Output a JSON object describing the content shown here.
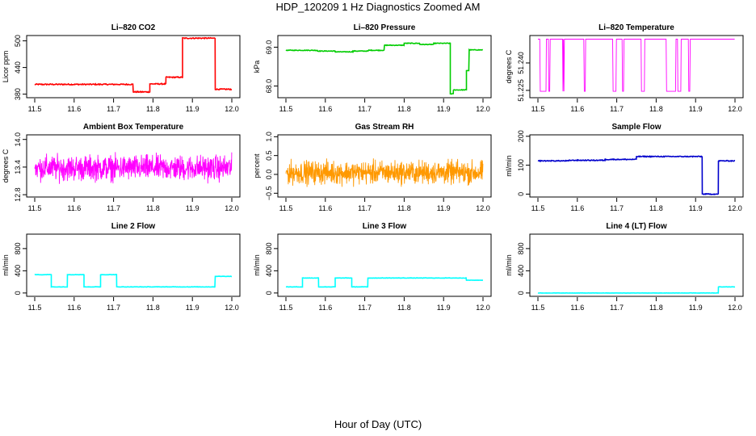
{
  "figure": {
    "title": "HDP_120209  1 Hz Diagnostics Zoomed AM",
    "xlabel": "Hour of Day (UTC)"
  },
  "chart_data": [
    {
      "type": "line",
      "title": "Li–820 CO2",
      "ylabel": "Licor ppm",
      "color": "#ff0000",
      "xlim": [
        11.5,
        12.0
      ],
      "xticks": [
        11.5,
        11.6,
        11.7,
        11.8,
        11.9,
        12.0
      ],
      "xtick_labels": [
        "11.5",
        "11.6",
        "11.7",
        "11.8",
        "11.9",
        "12.0"
      ],
      "ylim": [
        372,
        512
      ],
      "yticks": [
        380,
        440,
        500
      ],
      "ytick_labels": [
        "380",
        "440",
        "500"
      ],
      "segments": [
        [
          11.5,
          11.75,
          402
        ],
        [
          11.75,
          11.792,
          385
        ],
        [
          11.792,
          11.833,
          403
        ],
        [
          11.833,
          11.875,
          418
        ],
        [
          11.875,
          11.958,
          506
        ],
        [
          11.958,
          12.0,
          391
        ]
      ],
      "noise": 1.2
    },
    {
      "type": "line",
      "title": "Li–820 Pressure",
      "ylabel": "kPa",
      "color": "#00cc00",
      "xlim": [
        11.5,
        12.0
      ],
      "xticks": [
        11.5,
        11.6,
        11.7,
        11.8,
        11.9,
        12.0
      ],
      "xtick_labels": [
        "11.5",
        "11.6",
        "11.7",
        "11.8",
        "11.9",
        "12.0"
      ],
      "ylim": [
        67.7,
        69.3
      ],
      "yticks": [
        68.0,
        69.0
      ],
      "ytick_labels": [
        "68.0",
        "69.0"
      ],
      "segments": [
        [
          11.5,
          11.58,
          68.92
        ],
        [
          11.58,
          11.625,
          68.9
        ],
        [
          11.625,
          11.67,
          68.88
        ],
        [
          11.67,
          11.71,
          68.9
        ],
        [
          11.71,
          11.75,
          68.92
        ],
        [
          11.75,
          11.8,
          69.05
        ],
        [
          11.8,
          11.84,
          69.1
        ],
        [
          11.84,
          11.875,
          69.07
        ],
        [
          11.875,
          11.917,
          69.1
        ],
        [
          11.917,
          11.925,
          67.8
        ],
        [
          11.925,
          11.958,
          67.9
        ],
        [
          11.958,
          11.965,
          68.4
        ],
        [
          11.965,
          12.0,
          68.93
        ]
      ],
      "noise": 0.008
    },
    {
      "type": "line",
      "title": "Li–820 Temperature",
      "ylabel": "degrees C",
      "color": "#ff00ff",
      "xlim": [
        11.5,
        12.0
      ],
      "xticks": [
        11.5,
        11.6,
        11.7,
        11.8,
        11.9,
        12.0
      ],
      "xtick_labels": [
        "11.5",
        "11.6",
        "11.7",
        "11.8",
        "11.9",
        "12.0"
      ],
      "ylim": [
        51.221,
        51.255
      ],
      "yticks": [
        51.225,
        51.24
      ],
      "ytick_labels": [
        "51.225",
        "51.240"
      ],
      "levels": [
        51.253,
        51.2245
      ],
      "high_fraction": 0.75
    },
    {
      "type": "line",
      "title": "Ambient Box Temperature",
      "ylabel": "degrees C",
      "color": "#ff00ff",
      "xlim": [
        11.5,
        12.0
      ],
      "xticks": [
        11.5,
        11.6,
        11.7,
        11.8,
        11.9,
        12.0
      ],
      "xtick_labels": [
        "11.5",
        "11.6",
        "11.7",
        "11.8",
        "11.9",
        "12.0"
      ],
      "ylim": [
        12.75,
        14.1
      ],
      "yticks": [
        12.8,
        13.4,
        14.0
      ],
      "ytick_labels": [
        "12.8",
        "13.4",
        "14.0"
      ],
      "mean": 13.38,
      "spread": 0.4
    },
    {
      "type": "line",
      "title": "Gas Stream RH",
      "ylabel": "percent",
      "color": "#ff9900",
      "xlim": [
        11.5,
        12.0
      ],
      "xticks": [
        11.5,
        11.6,
        11.7,
        11.8,
        11.9,
        12.0
      ],
      "xtick_labels": [
        "11.5",
        "11.6",
        "11.7",
        "11.8",
        "11.9",
        "12.0"
      ],
      "ylim": [
        -0.6,
        1.05
      ],
      "yticks": [
        -0.5,
        0.0,
        0.5,
        1.0
      ],
      "ytick_labels": [
        "−0.5",
        "0.0",
        "0.5",
        "1.0"
      ],
      "mean": 0.05,
      "spread": 0.45
    },
    {
      "type": "line",
      "title": "Sample Flow",
      "ylabel": "ml/min",
      "color": "#0000cc",
      "xlim": [
        11.5,
        12.0
      ],
      "xticks": [
        11.5,
        11.6,
        11.7,
        11.8,
        11.9,
        12.0
      ],
      "xtick_labels": [
        "11.5",
        "11.6",
        "11.7",
        "11.8",
        "11.9",
        "12.0"
      ],
      "ylim": [
        -10,
        205
      ],
      "yticks": [
        0,
        100,
        200
      ],
      "ytick_labels": [
        "0",
        "100",
        "200"
      ],
      "segments": [
        [
          11.5,
          11.58,
          115
        ],
        [
          11.58,
          11.67,
          117
        ],
        [
          11.67,
          11.75,
          120
        ],
        [
          11.75,
          11.917,
          130
        ],
        [
          11.917,
          11.958,
          0
        ],
        [
          11.958,
          12.0,
          115
        ]
      ],
      "noise": 1.5
    },
    {
      "type": "line",
      "title": "Line 2 Flow",
      "ylabel": "ml/min",
      "color": "#00ffff",
      "xlim": [
        11.5,
        12.0
      ],
      "xticks": [
        11.5,
        11.6,
        11.7,
        11.8,
        11.9,
        12.0
      ],
      "xtick_labels": [
        "11.5",
        "11.6",
        "11.7",
        "11.8",
        "11.9",
        "12.0"
      ],
      "ylim": [
        -60,
        1060
      ],
      "yticks": [
        0,
        400,
        800
      ],
      "ytick_labels": [
        "0",
        "400",
        "800"
      ],
      "segments": [
        [
          11.5,
          11.542,
          330
        ],
        [
          11.542,
          11.583,
          110
        ],
        [
          11.583,
          11.625,
          330
        ],
        [
          11.625,
          11.667,
          110
        ],
        [
          11.667,
          11.708,
          330
        ],
        [
          11.708,
          11.958,
          110
        ],
        [
          11.958,
          12.0,
          300
        ]
      ],
      "noise": 3
    },
    {
      "type": "line",
      "title": "Line 3 Flow",
      "ylabel": "ml/min",
      "color": "#00ffff",
      "xlim": [
        11.5,
        12.0
      ],
      "xticks": [
        11.5,
        11.6,
        11.7,
        11.8,
        11.9,
        12.0
      ],
      "xtick_labels": [
        "11.5",
        "11.6",
        "11.7",
        "11.8",
        "11.9",
        "12.0"
      ],
      "ylim": [
        -60,
        1060
      ],
      "yticks": [
        0,
        400,
        800
      ],
      "ytick_labels": [
        "0",
        "400",
        "800"
      ],
      "segments": [
        [
          11.5,
          11.542,
          110
        ],
        [
          11.542,
          11.583,
          270
        ],
        [
          11.583,
          11.625,
          110
        ],
        [
          11.625,
          11.667,
          270
        ],
        [
          11.667,
          11.708,
          110
        ],
        [
          11.708,
          11.958,
          270
        ],
        [
          11.958,
          12.0,
          230
        ]
      ],
      "noise": 3
    },
    {
      "type": "line",
      "title": "Line 4 (LT) Flow",
      "ylabel": "ml/min",
      "color": "#00ffff",
      "xlim": [
        11.5,
        12.0
      ],
      "xticks": [
        11.5,
        11.6,
        11.7,
        11.8,
        11.9,
        12.0
      ],
      "xtick_labels": [
        "11.5",
        "11.6",
        "11.7",
        "11.8",
        "11.9",
        "12.0"
      ],
      "ylim": [
        -60,
        1060
      ],
      "yticks": [
        0,
        400,
        800
      ],
      "ytick_labels": [
        "0",
        "400",
        "800"
      ],
      "segments": [
        [
          11.5,
          11.958,
          0
        ],
        [
          11.958,
          12.0,
          110
        ]
      ],
      "noise": 2
    }
  ]
}
